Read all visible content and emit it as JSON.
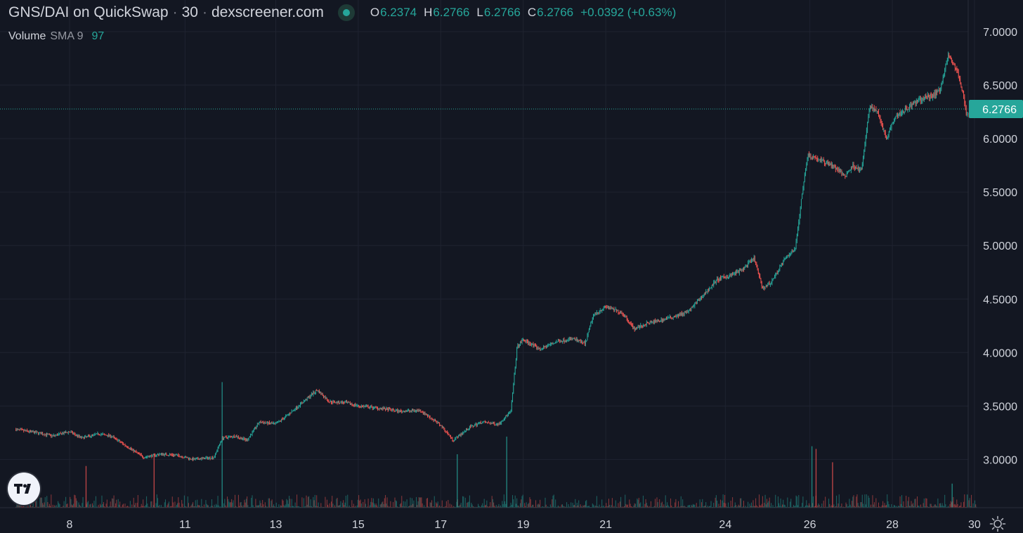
{
  "header": {
    "symbol": "GNS/DAI on QuickSwap",
    "interval": "30",
    "source": "dexscreener.com",
    "ohlc": {
      "open_label": "O",
      "open": "6.2374",
      "high_label": "H",
      "high": "6.2766",
      "low_label": "L",
      "low": "6.2766",
      "close_label": "C",
      "close": "6.2766",
      "change": "+0.0392 (+0.63%)"
    }
  },
  "volume_legend": {
    "label": "Volume",
    "indicator": "SMA 9",
    "value": "97"
  },
  "colors": {
    "background": "#131722",
    "up": "#26a69a",
    "down": "#ef5350",
    "grid": "#1f2330",
    "text": "#d1d4dc",
    "price_tag": "#26a69a"
  },
  "icons": {
    "logo": "tradingview-logo-icon",
    "settings": "gear-icon"
  },
  "chart_data": {
    "type": "candlestick",
    "title": "GNS/DAI on QuickSwap · 30 · dexscreener.com",
    "y_ticks": [
      "7.0000",
      "6.5000",
      "6.0000",
      "5.5000",
      "5.0000",
      "4.5000",
      "4.0000",
      "3.5000",
      "3.0000"
    ],
    "ylim": [
      2.6,
      7.2
    ],
    "x_ticks": [
      "8",
      "11",
      "13",
      "15",
      "17",
      "19",
      "21",
      "24",
      "26",
      "28",
      "30"
    ],
    "x_range_days": [
      6.7,
      30.0
    ],
    "last_price": "6.2766",
    "last_price_value": 6.2766,
    "price_path": [
      [
        6.7,
        3.28
      ],
      [
        7.2,
        3.25
      ],
      [
        7.6,
        3.22
      ],
      [
        8.0,
        3.26
      ],
      [
        8.3,
        3.2
      ],
      [
        8.7,
        3.24
      ],
      [
        9.0,
        3.22
      ],
      [
        9.4,
        3.12
      ],
      [
        9.8,
        3.02
      ],
      [
        10.2,
        3.05
      ],
      [
        10.6,
        3.04
      ],
      [
        11.0,
        3.0
      ],
      [
        11.5,
        3.02
      ],
      [
        11.7,
        3.2
      ],
      [
        12.0,
        3.22
      ],
      [
        12.3,
        3.18
      ],
      [
        12.6,
        3.35
      ],
      [
        13.0,
        3.33
      ],
      [
        13.3,
        3.42
      ],
      [
        13.7,
        3.55
      ],
      [
        14.0,
        3.65
      ],
      [
        14.3,
        3.54
      ],
      [
        14.7,
        3.53
      ],
      [
        15.0,
        3.5
      ],
      [
        15.5,
        3.48
      ],
      [
        16.0,
        3.45
      ],
      [
        16.5,
        3.46
      ],
      [
        17.0,
        3.32
      ],
      [
        17.3,
        3.18
      ],
      [
        17.7,
        3.3
      ],
      [
        18.0,
        3.35
      ],
      [
        18.4,
        3.33
      ],
      [
        18.7,
        3.45
      ],
      [
        18.85,
        4.05
      ],
      [
        19.0,
        4.12
      ],
      [
        19.4,
        4.03
      ],
      [
        19.8,
        4.1
      ],
      [
        20.2,
        4.13
      ],
      [
        20.5,
        4.08
      ],
      [
        20.7,
        4.35
      ],
      [
        21.0,
        4.43
      ],
      [
        21.4,
        4.37
      ],
      [
        21.7,
        4.22
      ],
      [
        22.0,
        4.27
      ],
      [
        22.5,
        4.32
      ],
      [
        23.0,
        4.38
      ],
      [
        23.4,
        4.55
      ],
      [
        23.7,
        4.68
      ],
      [
        24.0,
        4.72
      ],
      [
        24.3,
        4.77
      ],
      [
        24.6,
        4.88
      ],
      [
        24.8,
        4.6
      ],
      [
        25.0,
        4.65
      ],
      [
        25.3,
        4.85
      ],
      [
        25.6,
        4.98
      ],
      [
        25.8,
        5.6
      ],
      [
        25.9,
        5.85
      ],
      [
        26.2,
        5.8
      ],
      [
        26.5,
        5.75
      ],
      [
        26.8,
        5.65
      ],
      [
        27.0,
        5.75
      ],
      [
        27.2,
        5.7
      ],
      [
        27.4,
        6.3
      ],
      [
        27.6,
        6.25
      ],
      [
        27.8,
        6.0
      ],
      [
        28.0,
        6.2
      ],
      [
        28.3,
        6.28
      ],
      [
        28.6,
        6.36
      ],
      [
        28.9,
        6.4
      ],
      [
        29.1,
        6.45
      ],
      [
        29.3,
        6.78
      ],
      [
        29.5,
        6.65
      ],
      [
        29.65,
        6.45
      ],
      [
        29.75,
        6.22
      ],
      [
        30.0,
        6.28
      ]
    ],
    "volume_spikes": [
      {
        "day": 8.4,
        "value": 0.78,
        "dir": "down"
      },
      {
        "day": 10.05,
        "value": 1.0,
        "dir": "down"
      },
      {
        "day": 11.7,
        "value": 2.35,
        "dir": "up"
      },
      {
        "day": 18.6,
        "value": 1.33,
        "dir": "up"
      },
      {
        "day": 17.4,
        "value": 1.0,
        "dir": "up"
      },
      {
        "day": 26.0,
        "value": 1.15,
        "dir": "up"
      },
      {
        "day": 26.1,
        "value": 1.1,
        "dir": "down"
      },
      {
        "day": 26.5,
        "value": 0.85,
        "dir": "down"
      },
      {
        "day": 29.4,
        "value": 0.45,
        "dir": "up"
      }
    ]
  }
}
